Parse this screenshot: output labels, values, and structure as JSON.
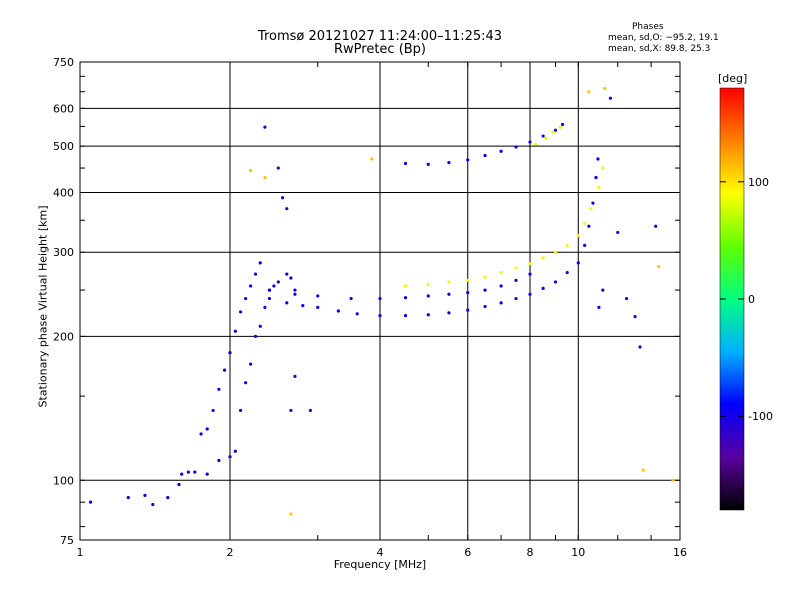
{
  "chart_data": {
    "type": "scatter",
    "title": "Tromsø 20121027 11:24:00–11:25:43",
    "subtitle": "RwPretec (Bp)",
    "xlabel": "Frequency [MHz]",
    "ylabel": "Stationary phase Virtual Height [km]",
    "x_scale": "log",
    "y_scale": "log",
    "xlim": [
      1,
      16
    ],
    "ylim": [
      75,
      750
    ],
    "x_ticks": [
      1,
      2,
      4,
      6,
      8,
      10,
      16
    ],
    "x_tick_labels": [
      "1",
      "2",
      "4",
      "6",
      "8",
      "10",
      "16"
    ],
    "y_ticks": [
      75,
      100,
      200,
      300,
      400,
      500,
      600,
      750
    ],
    "y_tick_labels": [
      "75",
      "100",
      "200",
      "300",
      "400",
      "500",
      "600",
      "750"
    ],
    "grid": true,
    "stats": {
      "heading": "Phases",
      "o_line": "mean, sd,O: −95.2, 19.1",
      "x_line": "mean, sd,X:  89.8, 25.3"
    },
    "colorbar": {
      "label": "[deg]",
      "ticks": [
        100,
        0,
        -100
      ],
      "tick_labels": [
        "100",
        "0",
        "-100"
      ],
      "range": [
        -180,
        180
      ],
      "colors": [
        "#000000",
        "#5a00a0",
        "#0000ff",
        "#00b0ff",
        "#00ff80",
        "#60ff00",
        "#ffff00",
        "#ff8000",
        "#ff0000"
      ]
    },
    "traces": [
      {
        "name": "",
        "phase_deg": -95,
        "points": [
          [
            1.05,
            90
          ],
          [
            1.25,
            92
          ],
          [
            1.35,
            93
          ],
          [
            1.4,
            89
          ],
          [
            1.5,
            92
          ],
          [
            1.58,
            98
          ],
          [
            1.6,
            103
          ],
          [
            1.65,
            104
          ],
          [
            1.7,
            104
          ],
          [
            1.8,
            103
          ],
          [
            1.75,
            125
          ],
          [
            1.8,
            128
          ],
          [
            1.85,
            140
          ],
          [
            1.9,
            155
          ],
          [
            1.95,
            170
          ],
          [
            2.0,
            185
          ],
          [
            2.05,
            205
          ],
          [
            2.1,
            225
          ],
          [
            2.15,
            240
          ],
          [
            2.2,
            255
          ],
          [
            2.25,
            270
          ],
          [
            2.3,
            285
          ]
        ]
      },
      {
        "name": "",
        "phase_deg": -100,
        "points": [
          [
            1.9,
            110
          ],
          [
            2.0,
            112
          ],
          [
            2.05,
            115
          ],
          [
            2.1,
            140
          ],
          [
            2.15,
            160
          ],
          [
            2.2,
            175
          ],
          [
            2.25,
            200
          ],
          [
            2.3,
            210
          ],
          [
            2.35,
            230
          ],
          [
            2.4,
            250
          ],
          [
            2.45,
            255
          ],
          [
            2.5,
            260
          ],
          [
            2.6,
            270
          ],
          [
            2.65,
            265
          ],
          [
            2.7,
            250
          ]
        ]
      },
      {
        "name": "",
        "phase_deg": -95,
        "points": [
          [
            2.4,
            240
          ],
          [
            2.6,
            235
          ],
          [
            2.8,
            232
          ],
          [
            3.0,
            230
          ],
          [
            3.3,
            226
          ],
          [
            3.6,
            223
          ],
          [
            4.0,
            221
          ],
          [
            4.5,
            221
          ],
          [
            5.0,
            222
          ],
          [
            5.5,
            224
          ],
          [
            6.0,
            227
          ],
          [
            6.5,
            231
          ],
          [
            7.0,
            235
          ],
          [
            7.5,
            240
          ],
          [
            8.0,
            245
          ],
          [
            8.5,
            252
          ],
          [
            9.0,
            260
          ],
          [
            9.5,
            272
          ],
          [
            10.0,
            285
          ],
          [
            10.3,
            310
          ],
          [
            10.5,
            340
          ],
          [
            10.7,
            380
          ],
          [
            10.85,
            430
          ],
          [
            10.95,
            470
          ]
        ]
      },
      {
        "name": "",
        "phase_deg": -90,
        "points": [
          [
            2.4,
            250
          ],
          [
            2.7,
            245
          ],
          [
            3.0,
            243
          ],
          [
            3.5,
            240
          ],
          [
            4.0,
            240
          ],
          [
            4.5,
            241
          ],
          [
            5.0,
            243
          ],
          [
            5.5,
            245
          ],
          [
            6.0,
            247
          ],
          [
            6.5,
            250
          ],
          [
            7.0,
            255
          ],
          [
            7.5,
            262
          ],
          [
            8.0,
            270
          ]
        ]
      },
      {
        "name": "",
        "phase_deg": 95,
        "points": [
          [
            4.5,
            255
          ],
          [
            5.0,
            257
          ],
          [
            5.5,
            260
          ],
          [
            6.0,
            262
          ],
          [
            6.5,
            266
          ],
          [
            7.0,
            272
          ],
          [
            7.5,
            278
          ],
          [
            8.0,
            284
          ],
          [
            8.5,
            292
          ],
          [
            9.0,
            300
          ],
          [
            9.5,
            310
          ],
          [
            10.0,
            325
          ],
          [
            10.3,
            345
          ],
          [
            10.6,
            370
          ],
          [
            11.0,
            410
          ],
          [
            11.2,
            450
          ]
        ]
      },
      {
        "name": "",
        "phase_deg": -95,
        "points": [
          [
            4.5,
            460
          ],
          [
            5.0,
            458
          ],
          [
            5.5,
            462
          ],
          [
            6.0,
            468
          ],
          [
            6.5,
            478
          ],
          [
            7.0,
            488
          ],
          [
            7.5,
            498
          ],
          [
            8.0,
            510
          ],
          [
            8.5,
            525
          ],
          [
            9.0,
            540
          ],
          [
            9.3,
            555
          ]
        ]
      },
      {
        "name": "",
        "phase_deg": 80,
        "points": [
          [
            8.2,
            505
          ],
          [
            8.6,
            520
          ],
          [
            8.9,
            535
          ],
          [
            9.2,
            548
          ]
        ]
      },
      {
        "name": "",
        "phase_deg": -110,
        "points": [
          [
            2.35,
            548
          ],
          [
            2.5,
            450
          ],
          [
            2.55,
            390
          ],
          [
            2.6,
            370
          ],
          [
            2.9,
            140
          ],
          [
            2.7,
            165
          ],
          [
            2.65,
            140
          ]
        ]
      },
      {
        "name": "",
        "phase_deg": 110,
        "points": [
          [
            2.2,
            445
          ],
          [
            2.35,
            430
          ],
          [
            3.85,
            470
          ],
          [
            10.5,
            650
          ],
          [
            11.3,
            660
          ],
          [
            13.5,
            105
          ],
          [
            14.5,
            280
          ],
          [
            15.5,
            100
          ],
          [
            2.65,
            85
          ]
        ]
      },
      {
        "name": "",
        "phase_deg": -105,
        "points": [
          [
            11.6,
            630
          ],
          [
            12.0,
            330
          ],
          [
            12.5,
            240
          ],
          [
            13.0,
            220
          ],
          [
            13.3,
            190
          ],
          [
            14.3,
            340
          ],
          [
            11.2,
            250
          ],
          [
            11.0,
            230
          ]
        ]
      }
    ]
  }
}
